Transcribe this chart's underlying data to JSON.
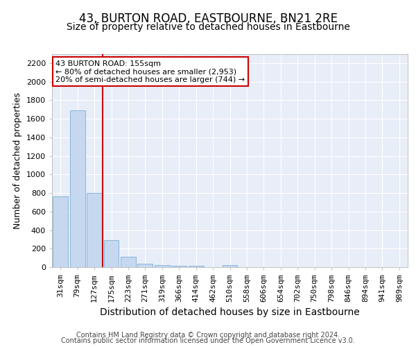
{
  "title": "43, BURTON ROAD, EASTBOURNE, BN21 2RE",
  "subtitle": "Size of property relative to detached houses in Eastbourne",
  "xlabel": "Distribution of detached houses by size in Eastbourne",
  "ylabel": "Number of detached properties",
  "footer1": "Contains HM Land Registry data © Crown copyright and database right 2024.",
  "footer2": "Contains public sector information licensed under the Open Government Licence v3.0.",
  "categories": [
    "31sqm",
    "79sqm",
    "127sqm",
    "175sqm",
    "223sqm",
    "271sqm",
    "319sqm",
    "366sqm",
    "414sqm",
    "462sqm",
    "510sqm",
    "558sqm",
    "606sqm",
    "654sqm",
    "702sqm",
    "750sqm",
    "798sqm",
    "846sqm",
    "894sqm",
    "941sqm",
    "989sqm"
  ],
  "values": [
    760,
    1690,
    800,
    295,
    112,
    35,
    22,
    18,
    12,
    0,
    20,
    0,
    0,
    0,
    0,
    0,
    0,
    0,
    0,
    0,
    0
  ],
  "bar_color": "#c5d8f0",
  "bar_edge_color": "#7aadd4",
  "vline_x_index": 2.5,
  "vline_color": "#cc0000",
  "annotation_text": "43 BURTON ROAD: 155sqm\n← 80% of detached houses are smaller (2,953)\n20% of semi-detached houses are larger (744) →",
  "annotation_box_edge": "#cc0000",
  "ylim": [
    0,
    2300
  ],
  "yticks": [
    0,
    200,
    400,
    600,
    800,
    1000,
    1200,
    1400,
    1600,
    1800,
    2000,
    2200
  ],
  "bg_color": "#e8eef8",
  "grid_color": "#ffffff",
  "title_fontsize": 12,
  "subtitle_fontsize": 10,
  "ylabel_fontsize": 9,
  "xlabel_fontsize": 10,
  "tick_fontsize": 8,
  "footer_fontsize": 7
}
